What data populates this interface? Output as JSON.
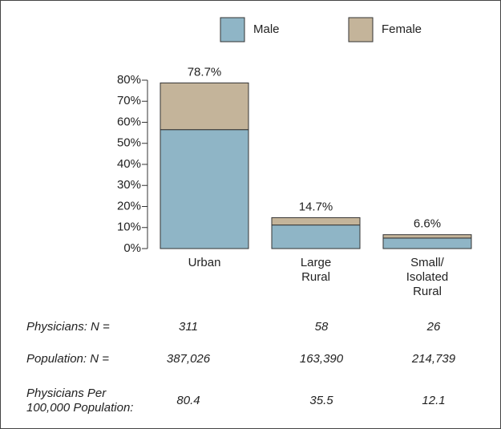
{
  "chart_data": {
    "type": "stacked_bar",
    "categories": [
      [
        "Urban"
      ],
      [
        "Large",
        "Rural"
      ],
      [
        "Small/",
        "Isolated",
        "Rural"
      ]
    ],
    "series": [
      {
        "name": "Male",
        "color": "#8fb5c6",
        "values": [
          56.5,
          11.2,
          5.0
        ]
      },
      {
        "name": "Female",
        "color": "#c4b49a",
        "values": [
          22.2,
          3.5,
          1.6
        ]
      }
    ],
    "totals": [
      78.7,
      14.7,
      6.6
    ],
    "total_labels": [
      "78.7%",
      "14.7%",
      "6.6%"
    ],
    "ylim": [
      0,
      80
    ],
    "yticks": [
      {
        "value": 0,
        "label": "0%"
      },
      {
        "value": 10,
        "label": "10%"
      },
      {
        "value": 20,
        "label": "20%"
      },
      {
        "value": 30,
        "label": "30%"
      },
      {
        "value": 40,
        "label": "40%"
      },
      {
        "value": 50,
        "label": "50%"
      },
      {
        "value": 60,
        "label": "60%"
      },
      {
        "value": 70,
        "label": "70%"
      },
      {
        "value": 80,
        "label": "80%"
      }
    ]
  },
  "table": {
    "rows": [
      [
        [
          "Physicians: N ="
        ],
        "311",
        "58",
        "26"
      ],
      [
        [
          "Population: N ="
        ],
        "387,026",
        "163,390",
        "214,739"
      ],
      [
        [
          "Physicians Per",
          "100,000 Population:"
        ],
        "80.4",
        "35.5",
        "12.1"
      ]
    ]
  }
}
